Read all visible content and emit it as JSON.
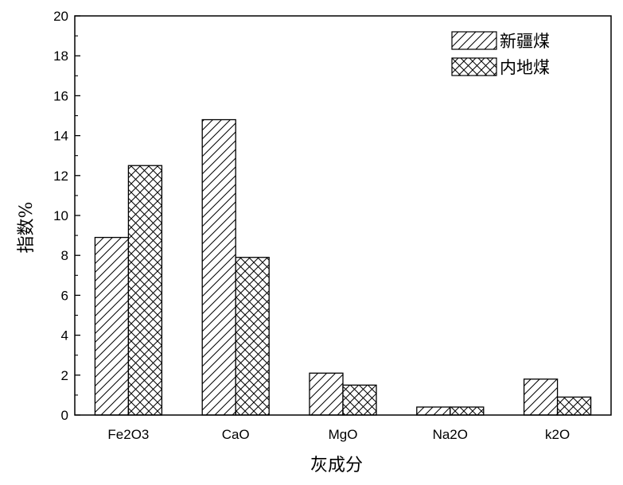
{
  "chart_data": {
    "type": "bar",
    "title": "",
    "xlabel": "灰成分",
    "ylabel": "指数%",
    "categories": [
      "Fe2O3",
      "CaO",
      "MgO",
      "Na2O",
      "k2O"
    ],
    "series": [
      {
        "name": "新疆煤",
        "pattern": "diagonal-hatch",
        "values": [
          8.9,
          14.8,
          2.1,
          0.4,
          1.8
        ]
      },
      {
        "name": "内地煤",
        "pattern": "cross-hatch",
        "values": [
          12.5,
          7.9,
          1.5,
          0.4,
          0.9
        ]
      }
    ],
    "ylim": [
      0,
      20
    ],
    "yticks": [
      0,
      2,
      4,
      6,
      8,
      10,
      12,
      14,
      16,
      18,
      20
    ],
    "grid": false,
    "legend_position": "top-right",
    "colors": {
      "stroke": "#000000",
      "fill": "#ffffff"
    }
  }
}
